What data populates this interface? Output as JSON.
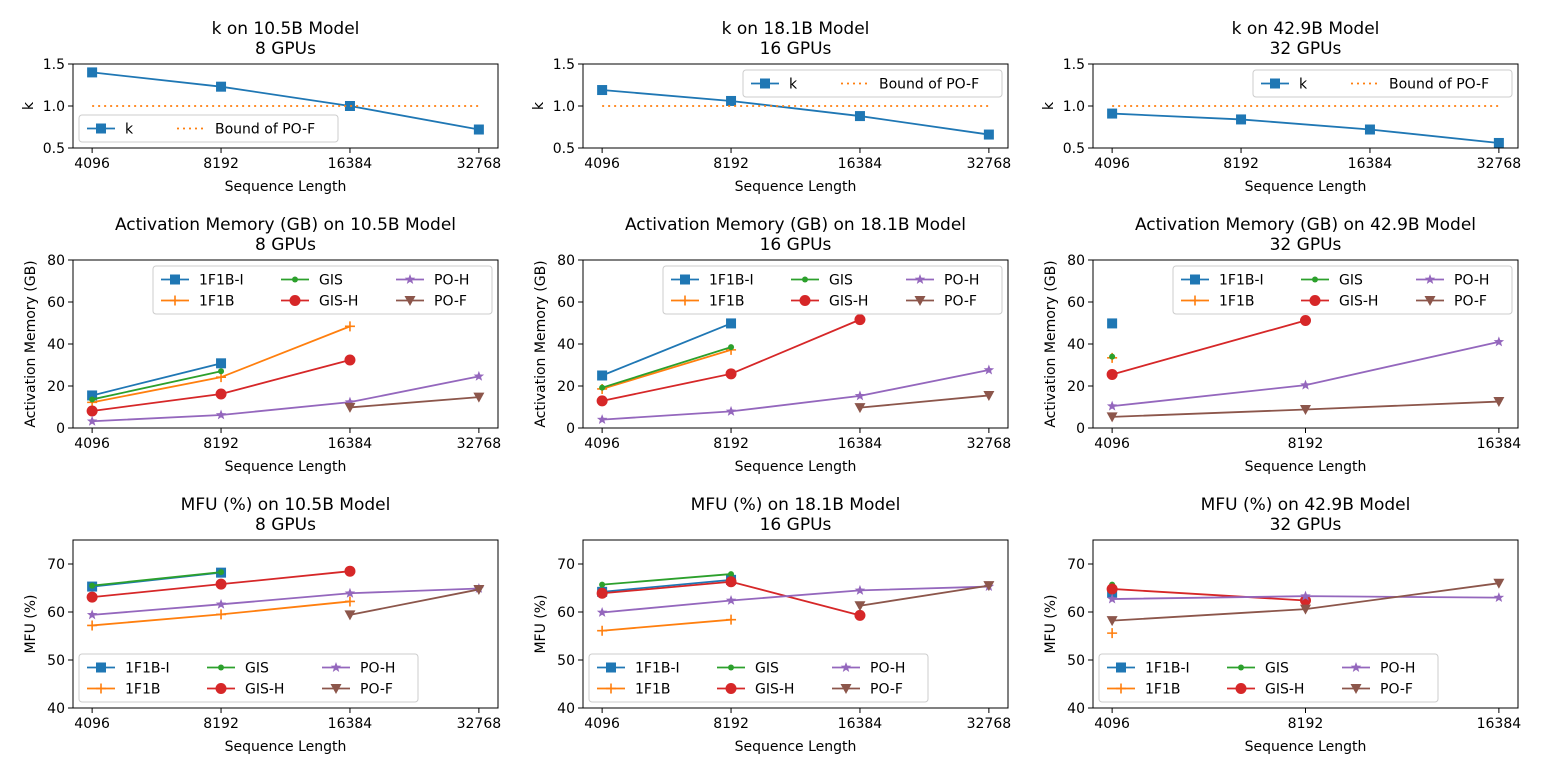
{
  "colors": {
    "1F1B-I": "#1f77b4",
    "1F1B": "#ff7f0e",
    "GIS": "#2ca02c",
    "GIS-H": "#d62728",
    "PO-H": "#9467bd",
    "PO-F": "#8c564b",
    "k": "#1f77b4",
    "Bound of PO-F": "#ff7f0e"
  },
  "markers": {
    "1F1B-I": "square",
    "1F1B": "plus",
    "GIS": "dot",
    "GIS-H": "circle",
    "PO-H": "star",
    "PO-F": "triangle-down",
    "k": "square",
    "Bound of PO-F": "none"
  },
  "chart_data": [
    {
      "type": "line",
      "title": "k on 10.5B Model",
      "subtitle": "8 GPUs",
      "xlabel": "Sequence Length",
      "ylabel": "k",
      "categories": [
        "4096",
        "8192",
        "16384",
        "32768"
      ],
      "ylim": [
        0.5,
        1.5
      ],
      "yticks": [
        "0.5",
        "1.0",
        "1.5"
      ],
      "series": [
        {
          "name": "k",
          "values": [
            1.4,
            1.23,
            1.0,
            0.72
          ]
        },
        {
          "name": "Bound of PO-F",
          "values": [
            1.0,
            1.0,
            1.0,
            1.0
          ],
          "dotted": true
        }
      ],
      "legend": {
        "position": "lower-left",
        "ncol": 2
      }
    },
    {
      "type": "line",
      "title": "k on 18.1B Model",
      "subtitle": "16 GPUs",
      "xlabel": "Sequence Length",
      "ylabel": "k",
      "categories": [
        "4096",
        "8192",
        "16384",
        "32768"
      ],
      "ylim": [
        0.5,
        1.5
      ],
      "yticks": [
        "0.5",
        "1.0",
        "1.5"
      ],
      "series": [
        {
          "name": "k",
          "values": [
            1.19,
            1.06,
            0.88,
            0.66
          ]
        },
        {
          "name": "Bound of PO-F",
          "values": [
            1.0,
            1.0,
            1.0,
            1.0
          ],
          "dotted": true
        }
      ],
      "legend": {
        "position": "upper-right",
        "ncol": 2
      }
    },
    {
      "type": "line",
      "title": "k on 42.9B Model",
      "subtitle": "32 GPUs",
      "xlabel": "Sequence Length",
      "ylabel": "k",
      "categories": [
        "4096",
        "8192",
        "16384",
        "32768"
      ],
      "ylim": [
        0.5,
        1.5
      ],
      "yticks": [
        "0.5",
        "1.0",
        "1.5"
      ],
      "series": [
        {
          "name": "k",
          "values": [
            0.91,
            0.84,
            0.72,
            0.56
          ]
        },
        {
          "name": "Bound of PO-F",
          "values": [
            1.0,
            1.0,
            1.0,
            1.0
          ],
          "dotted": true
        }
      ],
      "legend": {
        "position": "upper-right",
        "ncol": 2
      }
    },
    {
      "type": "line",
      "title": "Activation Memory (GB) on 10.5B Model",
      "subtitle": "8 GPUs",
      "xlabel": "Sequence Length",
      "ylabel": "Activation Memory (GB)",
      "categories": [
        "4096",
        "8192",
        "16384",
        "32768"
      ],
      "ylim": [
        0,
        80
      ],
      "yticks": [
        "0",
        "20",
        "40",
        "60",
        "80"
      ],
      "series": [
        {
          "name": "1F1B-I",
          "values": [
            15.5,
            30.8,
            null,
            null
          ]
        },
        {
          "name": "1F1B",
          "values": [
            12.2,
            24.2,
            48.4,
            null
          ]
        },
        {
          "name": "GIS",
          "values": [
            13.6,
            27.0,
            null,
            null
          ]
        },
        {
          "name": "GIS-H",
          "values": [
            8.1,
            16.2,
            32.4,
            null
          ]
        },
        {
          "name": "PO-H",
          "values": [
            3.2,
            6.2,
            12.3,
            24.6
          ]
        },
        {
          "name": "PO-F",
          "values": [
            null,
            null,
            9.8,
            14.7
          ]
        }
      ],
      "legend": {
        "position": "upper-right",
        "ncol": 3
      }
    },
    {
      "type": "line",
      "title": "Activation Memory (GB) on 18.1B Model",
      "subtitle": "16 GPUs",
      "xlabel": "Sequence Length",
      "ylabel": "Activation Memory (GB)",
      "categories": [
        "4096",
        "8192",
        "16384",
        "32768"
      ],
      "ylim": [
        0,
        80
      ],
      "yticks": [
        "0",
        "20",
        "40",
        "60",
        "80"
      ],
      "series": [
        {
          "name": "1F1B-I",
          "values": [
            25.0,
            49.8,
            null,
            null
          ]
        },
        {
          "name": "1F1B",
          "values": [
            18.6,
            37.2,
            null,
            null
          ]
        },
        {
          "name": "GIS",
          "values": [
            19.2,
            38.5,
            null,
            null
          ]
        },
        {
          "name": "GIS-H",
          "values": [
            12.9,
            25.8,
            51.6,
            null
          ]
        },
        {
          "name": "PO-H",
          "values": [
            4.0,
            7.9,
            15.3,
            27.6
          ]
        },
        {
          "name": "PO-F",
          "values": [
            null,
            null,
            9.7,
            15.5
          ]
        }
      ],
      "legend": {
        "position": "upper-right",
        "ncol": 3
      }
    },
    {
      "type": "line",
      "title": "Activation Memory (GB) on 42.9B Model",
      "subtitle": "32 GPUs",
      "xlabel": "Sequence Length",
      "ylabel": "Activation Memory (GB)",
      "categories": [
        "4096",
        "8192",
        "16384"
      ],
      "ylim": [
        0,
        80
      ],
      "yticks": [
        "0",
        "20",
        "40",
        "60",
        "80"
      ],
      "series": [
        {
          "name": "1F1B-I",
          "values": [
            49.8,
            null,
            null
          ]
        },
        {
          "name": "1F1B",
          "values": [
            33.4,
            null,
            null
          ]
        },
        {
          "name": "GIS",
          "values": [
            34.0,
            null,
            null
          ]
        },
        {
          "name": "GIS-H",
          "values": [
            25.5,
            51.2,
            null
          ]
        },
        {
          "name": "PO-H",
          "values": [
            10.4,
            20.4,
            41.0
          ]
        },
        {
          "name": "PO-F",
          "values": [
            5.3,
            8.8,
            12.6
          ]
        }
      ],
      "legend": {
        "position": "upper-right",
        "ncol": 3
      }
    },
    {
      "type": "line",
      "title": "MFU (%) on 10.5B Model",
      "subtitle": "8 GPUs",
      "xlabel": "Sequence Length",
      "ylabel": "MFU (%)",
      "categories": [
        "4096",
        "8192",
        "16384",
        "32768"
      ],
      "ylim": [
        40,
        75
      ],
      "yticks": [
        "40",
        "50",
        "60",
        "70"
      ],
      "series": [
        {
          "name": "1F1B-I",
          "values": [
            65.3,
            68.2,
            null,
            null
          ]
        },
        {
          "name": "1F1B",
          "values": [
            57.2,
            59.5,
            62.2,
            null
          ]
        },
        {
          "name": "GIS",
          "values": [
            65.5,
            68.3,
            null,
            null
          ]
        },
        {
          "name": "GIS-H",
          "values": [
            63.1,
            65.8,
            68.5,
            null
          ]
        },
        {
          "name": "PO-H",
          "values": [
            59.4,
            61.6,
            63.9,
            64.9
          ]
        },
        {
          "name": "PO-F",
          "values": [
            null,
            null,
            59.4,
            64.7
          ]
        }
      ],
      "legend": {
        "position": "lower-left",
        "ncol": 3
      }
    },
    {
      "type": "line",
      "title": "MFU (%) on 18.1B Model",
      "subtitle": "16 GPUs",
      "xlabel": "Sequence Length",
      "ylabel": "MFU (%)",
      "categories": [
        "4096",
        "8192",
        "16384",
        "32768"
      ],
      "ylim": [
        40,
        75
      ],
      "yticks": [
        "40",
        "50",
        "60",
        "70"
      ],
      "series": [
        {
          "name": "1F1B-I",
          "values": [
            64.2,
            66.7,
            null,
            null
          ]
        },
        {
          "name": "1F1B",
          "values": [
            56.1,
            58.4,
            null,
            null
          ]
        },
        {
          "name": "GIS",
          "values": [
            65.7,
            67.9,
            null,
            null
          ]
        },
        {
          "name": "GIS-H",
          "values": [
            63.9,
            66.3,
            59.3,
            null
          ]
        },
        {
          "name": "PO-H",
          "values": [
            59.9,
            62.4,
            64.5,
            65.3
          ]
        },
        {
          "name": "PO-F",
          "values": [
            null,
            null,
            61.3,
            65.5
          ]
        }
      ],
      "legend": {
        "position": "lower-left",
        "ncol": 3
      }
    },
    {
      "type": "line",
      "title": "MFU (%) on 42.9B Model",
      "subtitle": "32 GPUs",
      "xlabel": "Sequence Length",
      "ylabel": "MFU (%)",
      "categories": [
        "4096",
        "8192",
        "16384"
      ],
      "ylim": [
        40,
        75
      ],
      "yticks": [
        "40",
        "50",
        "60",
        "70"
      ],
      "series": [
        {
          "name": "1F1B-I",
          "values": [
            64.0,
            null,
            null
          ]
        },
        {
          "name": "1F1B",
          "values": [
            55.6,
            null,
            null
          ]
        },
        {
          "name": "GIS",
          "values": [
            65.7,
            null,
            null
          ]
        },
        {
          "name": "GIS-H",
          "values": [
            64.8,
            62.4,
            null
          ]
        },
        {
          "name": "PO-H",
          "values": [
            62.7,
            63.3,
            63.0
          ]
        },
        {
          "name": "PO-F",
          "values": [
            58.2,
            60.6,
            66.0
          ]
        }
      ],
      "legend": {
        "position": "lower-left",
        "ncol": 3
      }
    }
  ]
}
